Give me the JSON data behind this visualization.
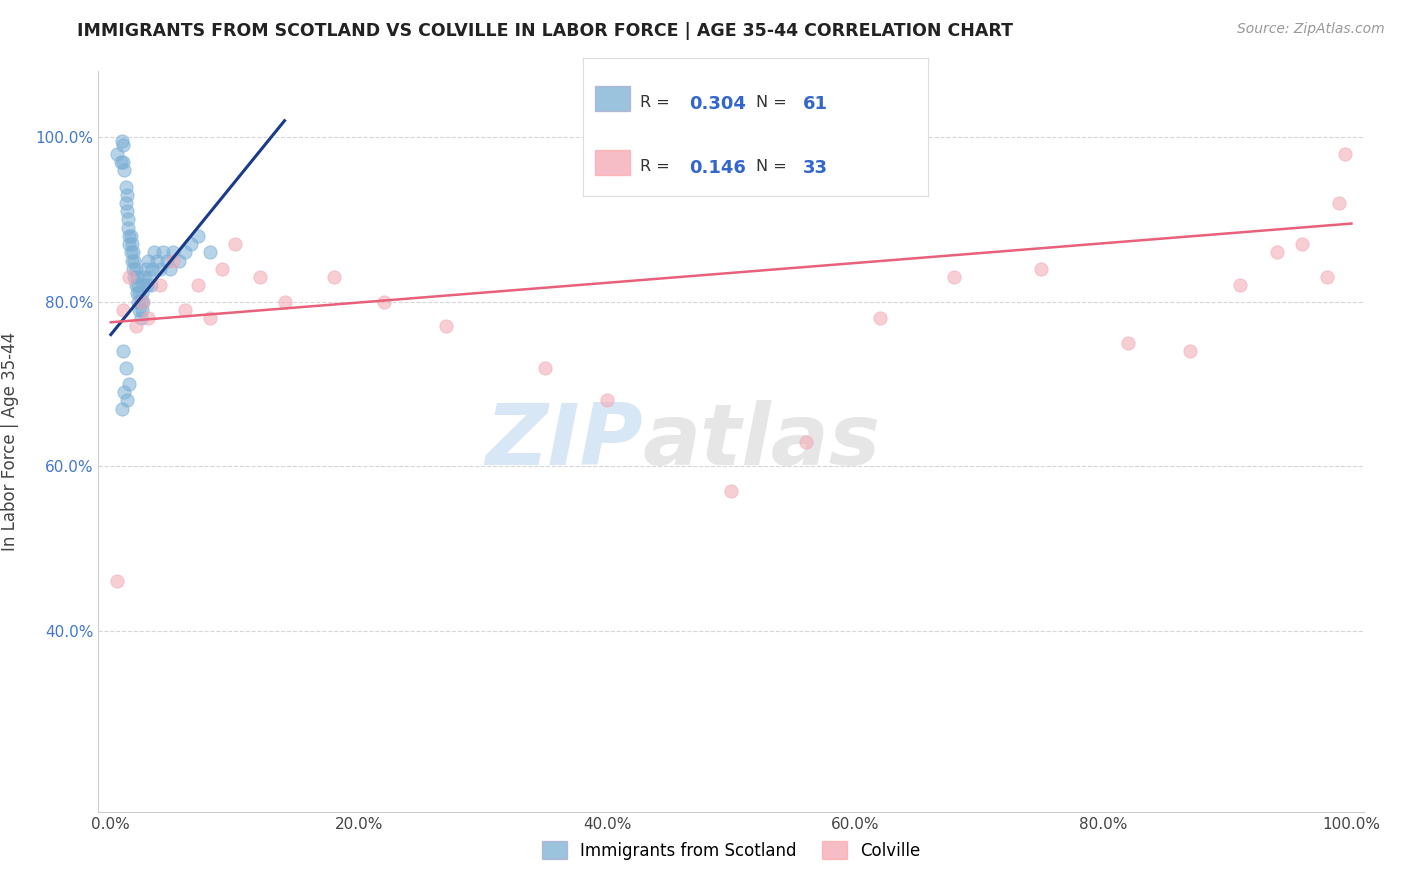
{
  "title": "IMMIGRANTS FROM SCOTLAND VS COLVILLE IN LABOR FORCE | AGE 35-44 CORRELATION CHART",
  "source": "Source: ZipAtlas.com",
  "ylabel": "In Labor Force | Age 35-44",
  "xlim": [
    -0.01,
    1.01
  ],
  "ylim": [
    0.18,
    1.08
  ],
  "xticks": [
    0.0,
    0.2,
    0.4,
    0.6,
    0.8,
    1.0
  ],
  "yticks": [
    0.4,
    0.6,
    0.8,
    1.0
  ],
  "xtick_labels": [
    "0.0%",
    "20.0%",
    "40.0%",
    "60.0%",
    "80.0%",
    "100.0%"
  ],
  "ytick_labels": [
    "40.0%",
    "60.0%",
    "80.0%",
    "100.0%"
  ],
  "legend_labels": [
    "Immigrants from Scotland",
    "Colville"
  ],
  "r_blue": 0.304,
  "n_blue": 61,
  "r_pink": 0.146,
  "n_pink": 33,
  "blue_color": "#7BAFD4",
  "pink_color": "#F4A7B4",
  "blue_line_color": "#1A3A8A",
  "pink_line_color": "#E8607A",
  "watermark_zip": "ZIP",
  "watermark_atlas": "atlas",
  "background_color": "#FFFFFF",
  "scatter_alpha": 0.55,
  "scatter_size": 90,
  "blue_x": [
    0.005,
    0.008,
    0.009,
    0.01,
    0.01,
    0.011,
    0.012,
    0.012,
    0.013,
    0.013,
    0.014,
    0.014,
    0.015,
    0.015,
    0.016,
    0.016,
    0.017,
    0.017,
    0.018,
    0.018,
    0.019,
    0.019,
    0.02,
    0.02,
    0.021,
    0.021,
    0.022,
    0.022,
    0.023,
    0.023,
    0.024,
    0.024,
    0.025,
    0.025,
    0.026,
    0.026,
    0.027,
    0.028,
    0.029,
    0.03,
    0.031,
    0.032,
    0.033,
    0.035,
    0.037,
    0.04,
    0.042,
    0.045,
    0.048,
    0.05,
    0.055,
    0.06,
    0.065,
    0.07,
    0.08,
    0.01,
    0.012,
    0.015,
    0.013,
    0.011,
    0.009
  ],
  "blue_y": [
    0.98,
    0.97,
    0.995,
    0.99,
    0.97,
    0.96,
    0.94,
    0.92,
    0.93,
    0.91,
    0.9,
    0.89,
    0.88,
    0.87,
    0.88,
    0.86,
    0.87,
    0.85,
    0.86,
    0.84,
    0.85,
    0.83,
    0.84,
    0.82,
    0.83,
    0.81,
    0.82,
    0.8,
    0.81,
    0.79,
    0.8,
    0.78,
    0.81,
    0.79,
    0.8,
    0.82,
    0.83,
    0.84,
    0.82,
    0.85,
    0.83,
    0.82,
    0.84,
    0.86,
    0.85,
    0.84,
    0.86,
    0.85,
    0.84,
    0.86,
    0.85,
    0.86,
    0.87,
    0.88,
    0.86,
    0.74,
    0.72,
    0.7,
    0.68,
    0.69,
    0.67
  ],
  "pink_x": [
    0.005,
    0.01,
    0.015,
    0.02,
    0.025,
    0.03,
    0.04,
    0.05,
    0.06,
    0.07,
    0.08,
    0.09,
    0.1,
    0.12,
    0.14,
    0.18,
    0.22,
    0.27,
    0.35,
    0.4,
    0.5,
    0.56,
    0.62,
    0.68,
    0.75,
    0.82,
    0.87,
    0.91,
    0.94,
    0.96,
    0.98,
    0.99,
    0.995
  ],
  "pink_y": [
    0.46,
    0.79,
    0.83,
    0.77,
    0.8,
    0.78,
    0.82,
    0.85,
    0.79,
    0.82,
    0.78,
    0.84,
    0.87,
    0.83,
    0.8,
    0.83,
    0.8,
    0.77,
    0.72,
    0.68,
    0.57,
    0.63,
    0.78,
    0.83,
    0.84,
    0.75,
    0.74,
    0.82,
    0.86,
    0.87,
    0.83,
    0.92,
    0.98
  ],
  "grid_color": "#CCCCCC",
  "grid_style": "--",
  "blue_trend_x0": 0.0,
  "blue_trend_y0": 0.76,
  "blue_trend_x1": 0.14,
  "blue_trend_y1": 1.02,
  "pink_trend_x0": 0.0,
  "pink_trend_y0": 0.775,
  "pink_trend_x1": 1.0,
  "pink_trend_y1": 0.895
}
